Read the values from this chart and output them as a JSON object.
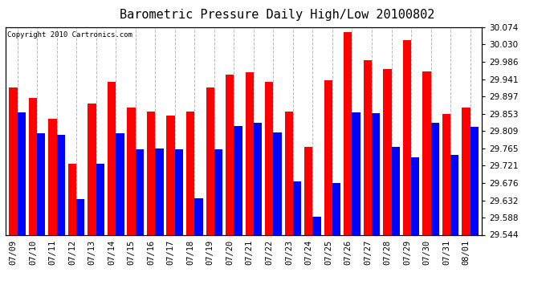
{
  "title": "Barometric Pressure Daily High/Low 20100802",
  "copyright": "Copyright 2010 Cartronics.com",
  "dates": [
    "07/09",
    "07/10",
    "07/11",
    "07/12",
    "07/13",
    "07/14",
    "07/15",
    "07/16",
    "07/17",
    "07/18",
    "07/19",
    "07/20",
    "07/21",
    "07/22",
    "07/23",
    "07/24",
    "07/25",
    "07/26",
    "07/27",
    "07/28",
    "07/29",
    "07/30",
    "07/31",
    "08/01"
  ],
  "highs": [
    29.92,
    29.893,
    29.84,
    29.726,
    29.878,
    29.935,
    29.868,
    29.858,
    29.848,
    29.858,
    29.92,
    29.952,
    29.958,
    29.934,
    29.858,
    29.768,
    29.938,
    30.062,
    29.99,
    29.968,
    30.04,
    29.96,
    29.852,
    29.868
  ],
  "lows": [
    29.856,
    29.804,
    29.8,
    29.635,
    29.726,
    29.804,
    29.762,
    29.764,
    29.762,
    29.638,
    29.762,
    29.822,
    29.83,
    29.806,
    29.68,
    29.59,
    29.676,
    29.856,
    29.854,
    29.768,
    29.742,
    29.83,
    29.748,
    29.82
  ],
  "high_color": "#ff0000",
  "low_color": "#0000ff",
  "background_color": "#ffffff",
  "plot_bg_color": "#ffffff",
  "grid_color": "#b0b0b0",
  "ymin": 29.544,
  "ymax": 30.074,
  "yticks": [
    29.544,
    29.588,
    29.632,
    29.676,
    29.721,
    29.765,
    29.809,
    29.853,
    29.897,
    29.941,
    29.986,
    30.03,
    30.074
  ],
  "title_fontsize": 11,
  "tick_fontsize": 7.5,
  "bar_width": 0.42
}
